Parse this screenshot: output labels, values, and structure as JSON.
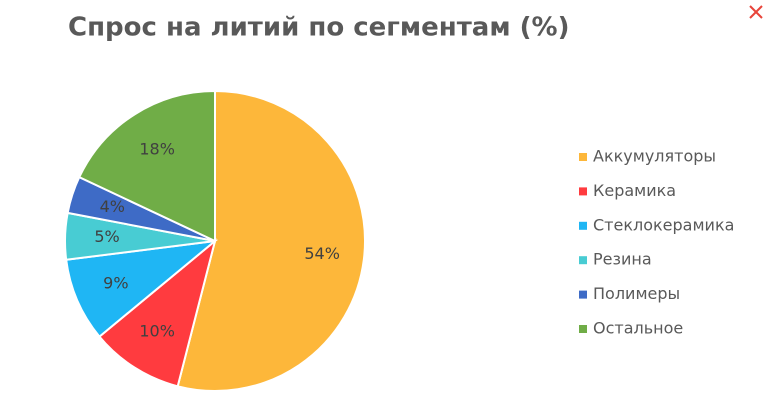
{
  "chart_data": {
    "type": "pie",
    "title": "Спрос на литий по сегментам (%)",
    "categories": [
      "Аккумуляторы",
      "Керамика",
      "Стеклокерамика",
      "Резина",
      "Полимеры",
      "Остальное"
    ],
    "values": [
      54,
      10,
      9,
      5,
      4,
      18
    ],
    "value_labels": [
      "54%",
      "10%",
      "9%",
      "5%",
      "4%",
      "18%"
    ],
    "colors": [
      "#FDB73A",
      "#FF3B3F",
      "#1FB6F4",
      "#48CCD3",
      "#3E6BC6",
      "#70AD47"
    ],
    "legend": "right"
  }
}
